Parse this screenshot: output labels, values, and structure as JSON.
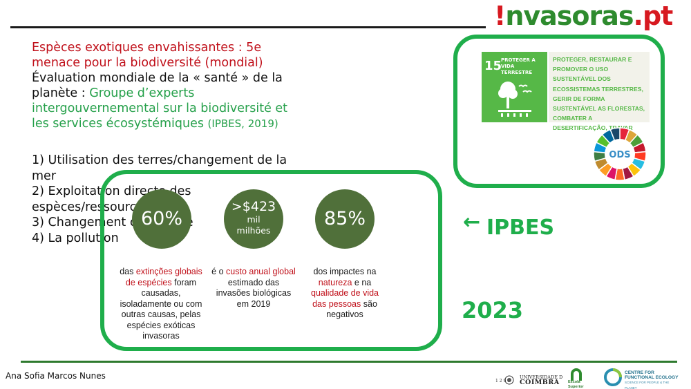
{
  "logo": {
    "mark": "!",
    "word_green": "nvasoras",
    "word_red": ".pt"
  },
  "text": {
    "heading_red": "Espèces exotiques envahissantes : 5e menace pour la biodiversité (mondial)",
    "line_black": "Évaluation mondiale de la « santé » de la planète : ",
    "line_green": "Groupe d’experts intergouvernemental sur la biodiversité et les services écosystémiques ",
    "line_green_small": "(IPBES, 2019)"
  },
  "causes": [
    "1) Utilisation des terres/changement de la mer",
    "2) Exploitation directe des espèces/ressources",
    "3) Changement climatique",
    "4) La pollution"
  ],
  "stats": [
    {
      "value": "60%",
      "desc_red": "extinções globais de espécies",
      "desc_pre": "das ",
      "desc_post": " foram causadas, isoladamente ou com outras causas, pelas espécies exóticas invasoras"
    },
    {
      "value": ">$423",
      "unit": "mil milhões",
      "desc_pre": "é o ",
      "desc_red": "custo anual global",
      "desc_post": " estimado das invasões biológicas em 2019"
    },
    {
      "value": "85%",
      "desc_pre": "dos impactes na ",
      "desc_red": "natureza",
      "desc_mid": " e na ",
      "desc_red2": "qualidade de vida das pessoas",
      "desc_post": " são negativos"
    }
  ],
  "ipbes": {
    "arrow": "←",
    "label": "IPBES",
    "year": "2023"
  },
  "sdg": {
    "number": "15",
    "title": "PROTEGER A VIDA TERRESTRE",
    "text": "PROTEGER, RESTAURAR E PROMOVER O USO SUSTENTÁVEL DOS ECOSSISTEMAS TERRESTRES, GERIR DE FORMA SUSTENTÁVEL AS FLORESTAS, COMBATER A DESERTIFICAÇÃO, TRAVAR",
    "wheel_label": "ODS"
  },
  "footer": {
    "author": "Ana Sofia Marcos Nunes",
    "uc_small": "UNIVERSIDADE D",
    "uc_big": "COIMBRA",
    "uc_years": "1 2 9 0",
    "esa": "Escola Superior Agrária",
    "cfe": "CENTRE FOR FUNCTIONAL ECOLOGY",
    "cfe_sub": "SCIENCE FOR PEOPLE & THE PLANET"
  },
  "colors": {
    "green": "#1fae4b",
    "red": "#c0101a",
    "circle": "#50703a",
    "sdg": "#56b847"
  }
}
